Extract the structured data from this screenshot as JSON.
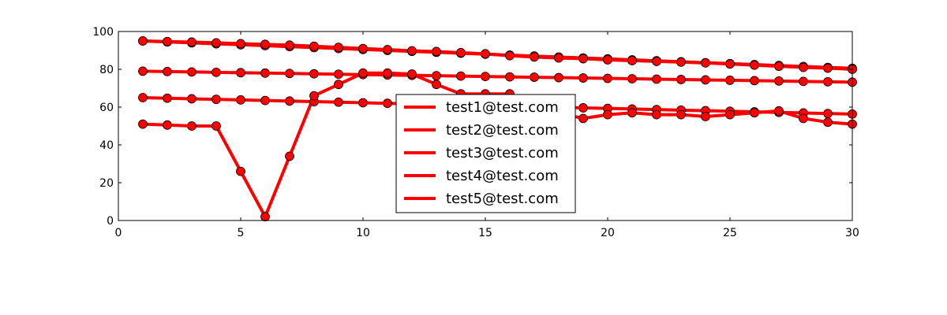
{
  "chart_data": {
    "type": "line",
    "title": "",
    "xlabel": "",
    "ylabel": "",
    "xlim": [
      0,
      30
    ],
    "ylim": [
      0,
      100
    ],
    "xticks": [
      0,
      5,
      10,
      15,
      20,
      25,
      30
    ],
    "yticks": [
      0,
      20,
      40,
      60,
      80,
      100
    ],
    "grid": false,
    "legend_position": "center",
    "line_color": "#ff0000",
    "marker_color": "#ff0000",
    "marker_edge_color": "#000000",
    "x": [
      1,
      2,
      3,
      4,
      5,
      6,
      7,
      8,
      9,
      10,
      11,
      12,
      13,
      14,
      15,
      16,
      17,
      18,
      19,
      20,
      21,
      22,
      23,
      24,
      25,
      26,
      27,
      28,
      29,
      30
    ],
    "series": [
      {
        "name": "test1@test.com",
        "values": [
          95,
          94.5,
          94,
          93.5,
          93,
          92.5,
          92,
          91.5,
          91,
          90.5,
          90,
          89.5,
          89,
          88.5,
          88,
          87.5,
          87,
          86.5,
          86,
          85.5,
          85,
          84.5,
          84,
          83.5,
          83,
          82.5,
          82,
          81.5,
          81,
          80.5
        ]
      },
      {
        "name": "test2@test.com",
        "values": [
          79,
          78.8,
          78.6,
          78.4,
          78.2,
          78,
          77.8,
          77.6,
          77.4,
          77.2,
          77,
          76.8,
          76.6,
          76.4,
          76.2,
          76,
          75.8,
          75.6,
          75.4,
          75.2,
          75,
          74.8,
          74.6,
          74.4,
          74.2,
          74,
          73.8,
          73.6,
          73.4,
          73.2
        ]
      },
      {
        "name": "test3@test.com",
        "values": [
          65,
          64.7,
          64.4,
          64.1,
          63.8,
          63.5,
          63.2,
          62.9,
          62.6,
          62.3,
          62,
          61.7,
          61.4,
          61.1,
          60.8,
          60.5,
          60.2,
          59.9,
          59.6,
          59.3,
          59,
          58.7,
          58.4,
          58.1,
          57.8,
          57.5,
          57.2,
          56.9,
          56.6,
          56.3
        ]
      },
      {
        "name": "test4@test.com",
        "values": [
          51,
          50.5,
          50,
          50,
          26,
          2,
          34,
          66,
          72,
          78,
          78,
          77.5,
          72,
          67,
          67,
          67,
          61,
          57,
          54,
          56,
          57,
          56,
          56,
          55,
          56,
          57,
          58,
          54,
          52,
          51
        ]
      },
      {
        "name": "test5@test.com",
        "values": [
          95,
          94.7,
          94.4,
          94,
          93.6,
          93.2,
          92.8,
          92.2,
          91.6,
          91,
          90.4,
          89.8,
          89.4,
          88.8,
          88.2,
          87.2,
          86.5,
          86,
          85.6,
          85,
          84.6,
          84.2,
          83.8,
          83.4,
          82.8,
          82.2,
          81.6,
          81,
          80.6,
          80
        ]
      }
    ]
  }
}
